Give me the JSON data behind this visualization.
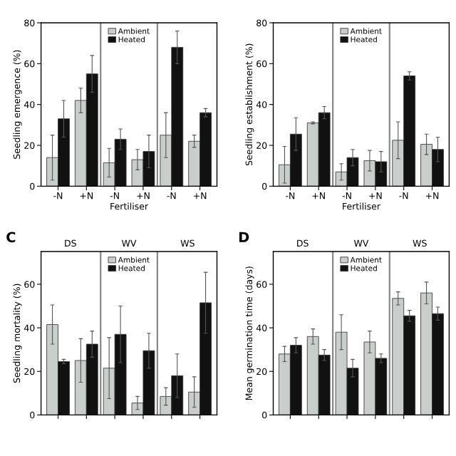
{
  "chart_data": [
    {
      "type": "bar",
      "ylabel": "Seedling emergence (%)",
      "xlabel": "Fertiliser",
      "categories": [
        "-N",
        "+N",
        "-N",
        "+N",
        "-N",
        "+N"
      ],
      "ylim": [
        0,
        80
      ],
      "yticks": [
        0,
        20,
        40,
        60,
        80
      ],
      "legend": "top",
      "grid": false,
      "series": [
        {
          "name": "Ambient",
          "color": "#c8cec9",
          "values": [
            14,
            42,
            11.5,
            13,
            25,
            22
          ],
          "errors": [
            11,
            6,
            7,
            5,
            11,
            3
          ]
        },
        {
          "name": "Heated",
          "color": "#111111",
          "values": [
            33,
            55,
            23,
            17,
            68,
            36
          ],
          "errors": [
            9,
            9,
            5,
            8,
            8,
            2
          ]
        }
      ]
    },
    {
      "type": "bar",
      "ylabel": "Seedling establishment (%)",
      "xlabel": "Fertiliser",
      "categories": [
        "-N",
        "+N",
        "-N",
        "+N",
        "-N",
        "+N"
      ],
      "ylim": [
        0,
        80
      ],
      "yticks": [
        0,
        20,
        40,
        60,
        80
      ],
      "legend": "top",
      "grid": false,
      "series": [
        {
          "name": "Ambient",
          "color": "#c8cec9",
          "values": [
            10.5,
            31,
            7,
            12.5,
            22.5,
            20.5
          ],
          "errors": [
            9,
            0.5,
            4,
            5,
            9,
            5
          ]
        },
        {
          "name": "Heated",
          "color": "#111111",
          "values": [
            25.5,
            36,
            14,
            12,
            54,
            18
          ],
          "errors": [
            8,
            3,
            4,
            5,
            2,
            6
          ]
        }
      ]
    },
    {
      "type": "bar",
      "title": "C",
      "ylabel": "Seedling mortality (%)",
      "annotations": [
        "DS",
        "WV",
        "WS"
      ],
      "categories": [
        null,
        null,
        null,
        null,
        null,
        null
      ],
      "ylim": [
        0,
        75
      ],
      "yticks": [
        0,
        20,
        40,
        60
      ],
      "legend": "top",
      "grid": false,
      "series": [
        {
          "name": "Ambient",
          "color": "#c8cec9",
          "values": [
            41.5,
            25,
            21.5,
            5.5,
            8.5,
            10.5
          ],
          "errors": [
            9,
            10,
            14,
            3,
            4,
            7
          ]
        },
        {
          "name": "Heated",
          "color": "#111111",
          "values": [
            24.5,
            32.5,
            37,
            29.5,
            18,
            51.5
          ],
          "errors": [
            1,
            6,
            13,
            8,
            10,
            14
          ]
        }
      ]
    },
    {
      "type": "bar",
      "title": "D",
      "ylabel": "Mean germination time (days)",
      "annotations": [
        "DS",
        "WV",
        "WS"
      ],
      "categories": [
        null,
        null,
        null,
        null,
        null,
        null
      ],
      "ylim": [
        0,
        75
      ],
      "yticks": [
        0,
        20,
        40,
        60
      ],
      "legend": "top",
      "grid": false,
      "series": [
        {
          "name": "Ambient",
          "color": "#c8cec9",
          "values": [
            28,
            36,
            38,
            33.5,
            53.5,
            56
          ],
          "errors": [
            3.5,
            3.5,
            8,
            5,
            3,
            5
          ]
        },
        {
          "name": "Heated",
          "color": "#111111",
          "values": [
            32,
            27.5,
            21.5,
            26,
            45.5,
            46.5
          ],
          "errors": [
            3.5,
            2.5,
            4,
            2,
            2.5,
            3
          ]
        }
      ]
    }
  ]
}
